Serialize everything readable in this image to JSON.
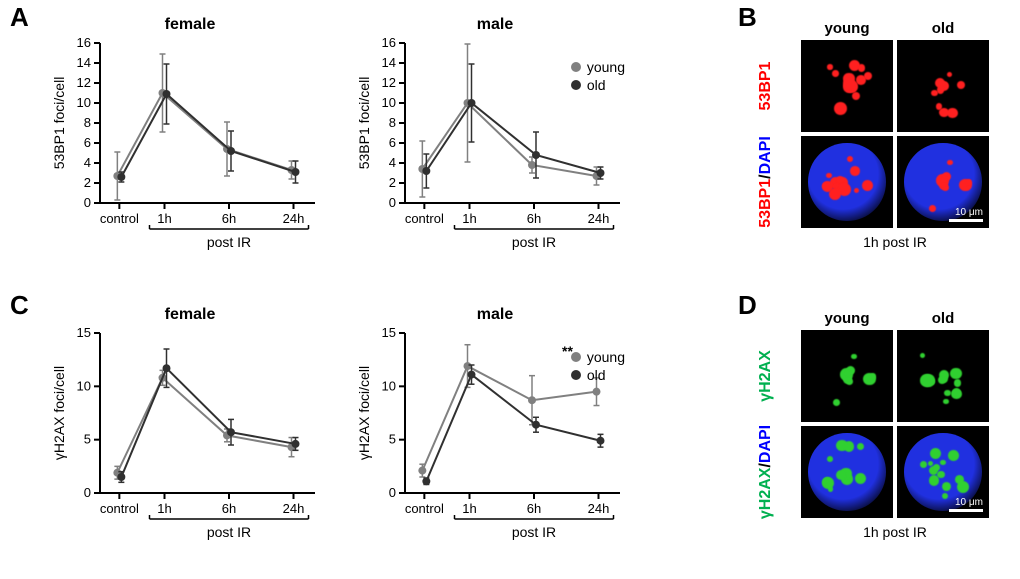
{
  "labels": {
    "A": "A",
    "B": "B",
    "C": "C",
    "D": "D"
  },
  "legend": {
    "young": "young",
    "old": "old",
    "young_color": "#808080",
    "old_color": "#303030"
  },
  "axis": {
    "xcats": [
      "control",
      "1h",
      "6h",
      "24h"
    ],
    "xgroup_label": "post IR",
    "y53_label": "53BP1 foci/cell",
    "yh2ax_label": "γH2AX foci/cell"
  },
  "charts": {
    "A_female": {
      "title": "female",
      "ylim": [
        0,
        16
      ],
      "ytick_step": 2,
      "young": {
        "y": [
          2.7,
          11.0,
          5.4,
          3.3
        ],
        "err": [
          2.4,
          3.9,
          2.7,
          0.9
        ]
      },
      "old": {
        "y": [
          2.6,
          10.9,
          5.2,
          3.1
        ],
        "err": [
          0.5,
          3.0,
          2.0,
          1.1
        ]
      }
    },
    "A_male": {
      "title": "male",
      "ylim": [
        0,
        16
      ],
      "ytick_step": 2,
      "young": {
        "y": [
          3.4,
          10.0,
          3.8,
          2.7
        ],
        "err": [
          2.8,
          5.9,
          0.8,
          0.9
        ]
      },
      "old": {
        "y": [
          3.2,
          10.0,
          4.8,
          3.0
        ],
        "err": [
          1.7,
          3.9,
          2.3,
          0.6
        ]
      }
    },
    "C_female": {
      "title": "female",
      "ylim": [
        0,
        15
      ],
      "ytick_step": 5,
      "young": {
        "y": [
          1.9,
          10.8,
          5.4,
          4.3
        ],
        "err": [
          0.6,
          0.7,
          0.6,
          0.9
        ]
      },
      "old": {
        "y": [
          1.5,
          11.7,
          5.7,
          4.6
        ],
        "err": [
          0.5,
          1.8,
          1.2,
          0.6
        ]
      }
    },
    "C_male": {
      "title": "male",
      "ylim": [
        0,
        15
      ],
      "ytick_step": 5,
      "young": {
        "y": [
          2.1,
          11.9,
          8.7,
          9.5
        ],
        "err": [
          0.6,
          2.0,
          2.3,
          1.3
        ]
      },
      "old": {
        "y": [
          1.1,
          11.1,
          6.4,
          4.9
        ],
        "err": [
          0.3,
          0.9,
          0.7,
          0.6
        ]
      },
      "sig": "**"
    }
  },
  "style": {
    "axis_color": "#000000",
    "axis_width": 2,
    "grid_color": "none",
    "font_size_axis": 14,
    "font_size_tick": 13,
    "marker_radius": 4,
    "line_width": 2,
    "err_cap_w": 6
  },
  "micro": {
    "B": {
      "cols": [
        "young",
        "old"
      ],
      "rows": [
        "53BP1",
        "53BP1/DAPI"
      ],
      "row_colors": [
        "#ff0000",
        "#0000ff"
      ],
      "row1_text_color": "#ff0000",
      "caption": "1h post IR",
      "scale": "10 μm",
      "foci_color": "#ff2020",
      "dapi_color": "#2030e0"
    },
    "D": {
      "cols": [
        "young",
        "old"
      ],
      "rows": [
        "γH2AX",
        "γH2AX/DAPI"
      ],
      "row_colors": [
        "#00b050",
        "#0000ff"
      ],
      "row1_text_color": "#00b050",
      "caption": "1h post IR",
      "scale": "10 μm",
      "foci_color": "#30d030",
      "dapi_color": "#2030e0"
    }
  }
}
